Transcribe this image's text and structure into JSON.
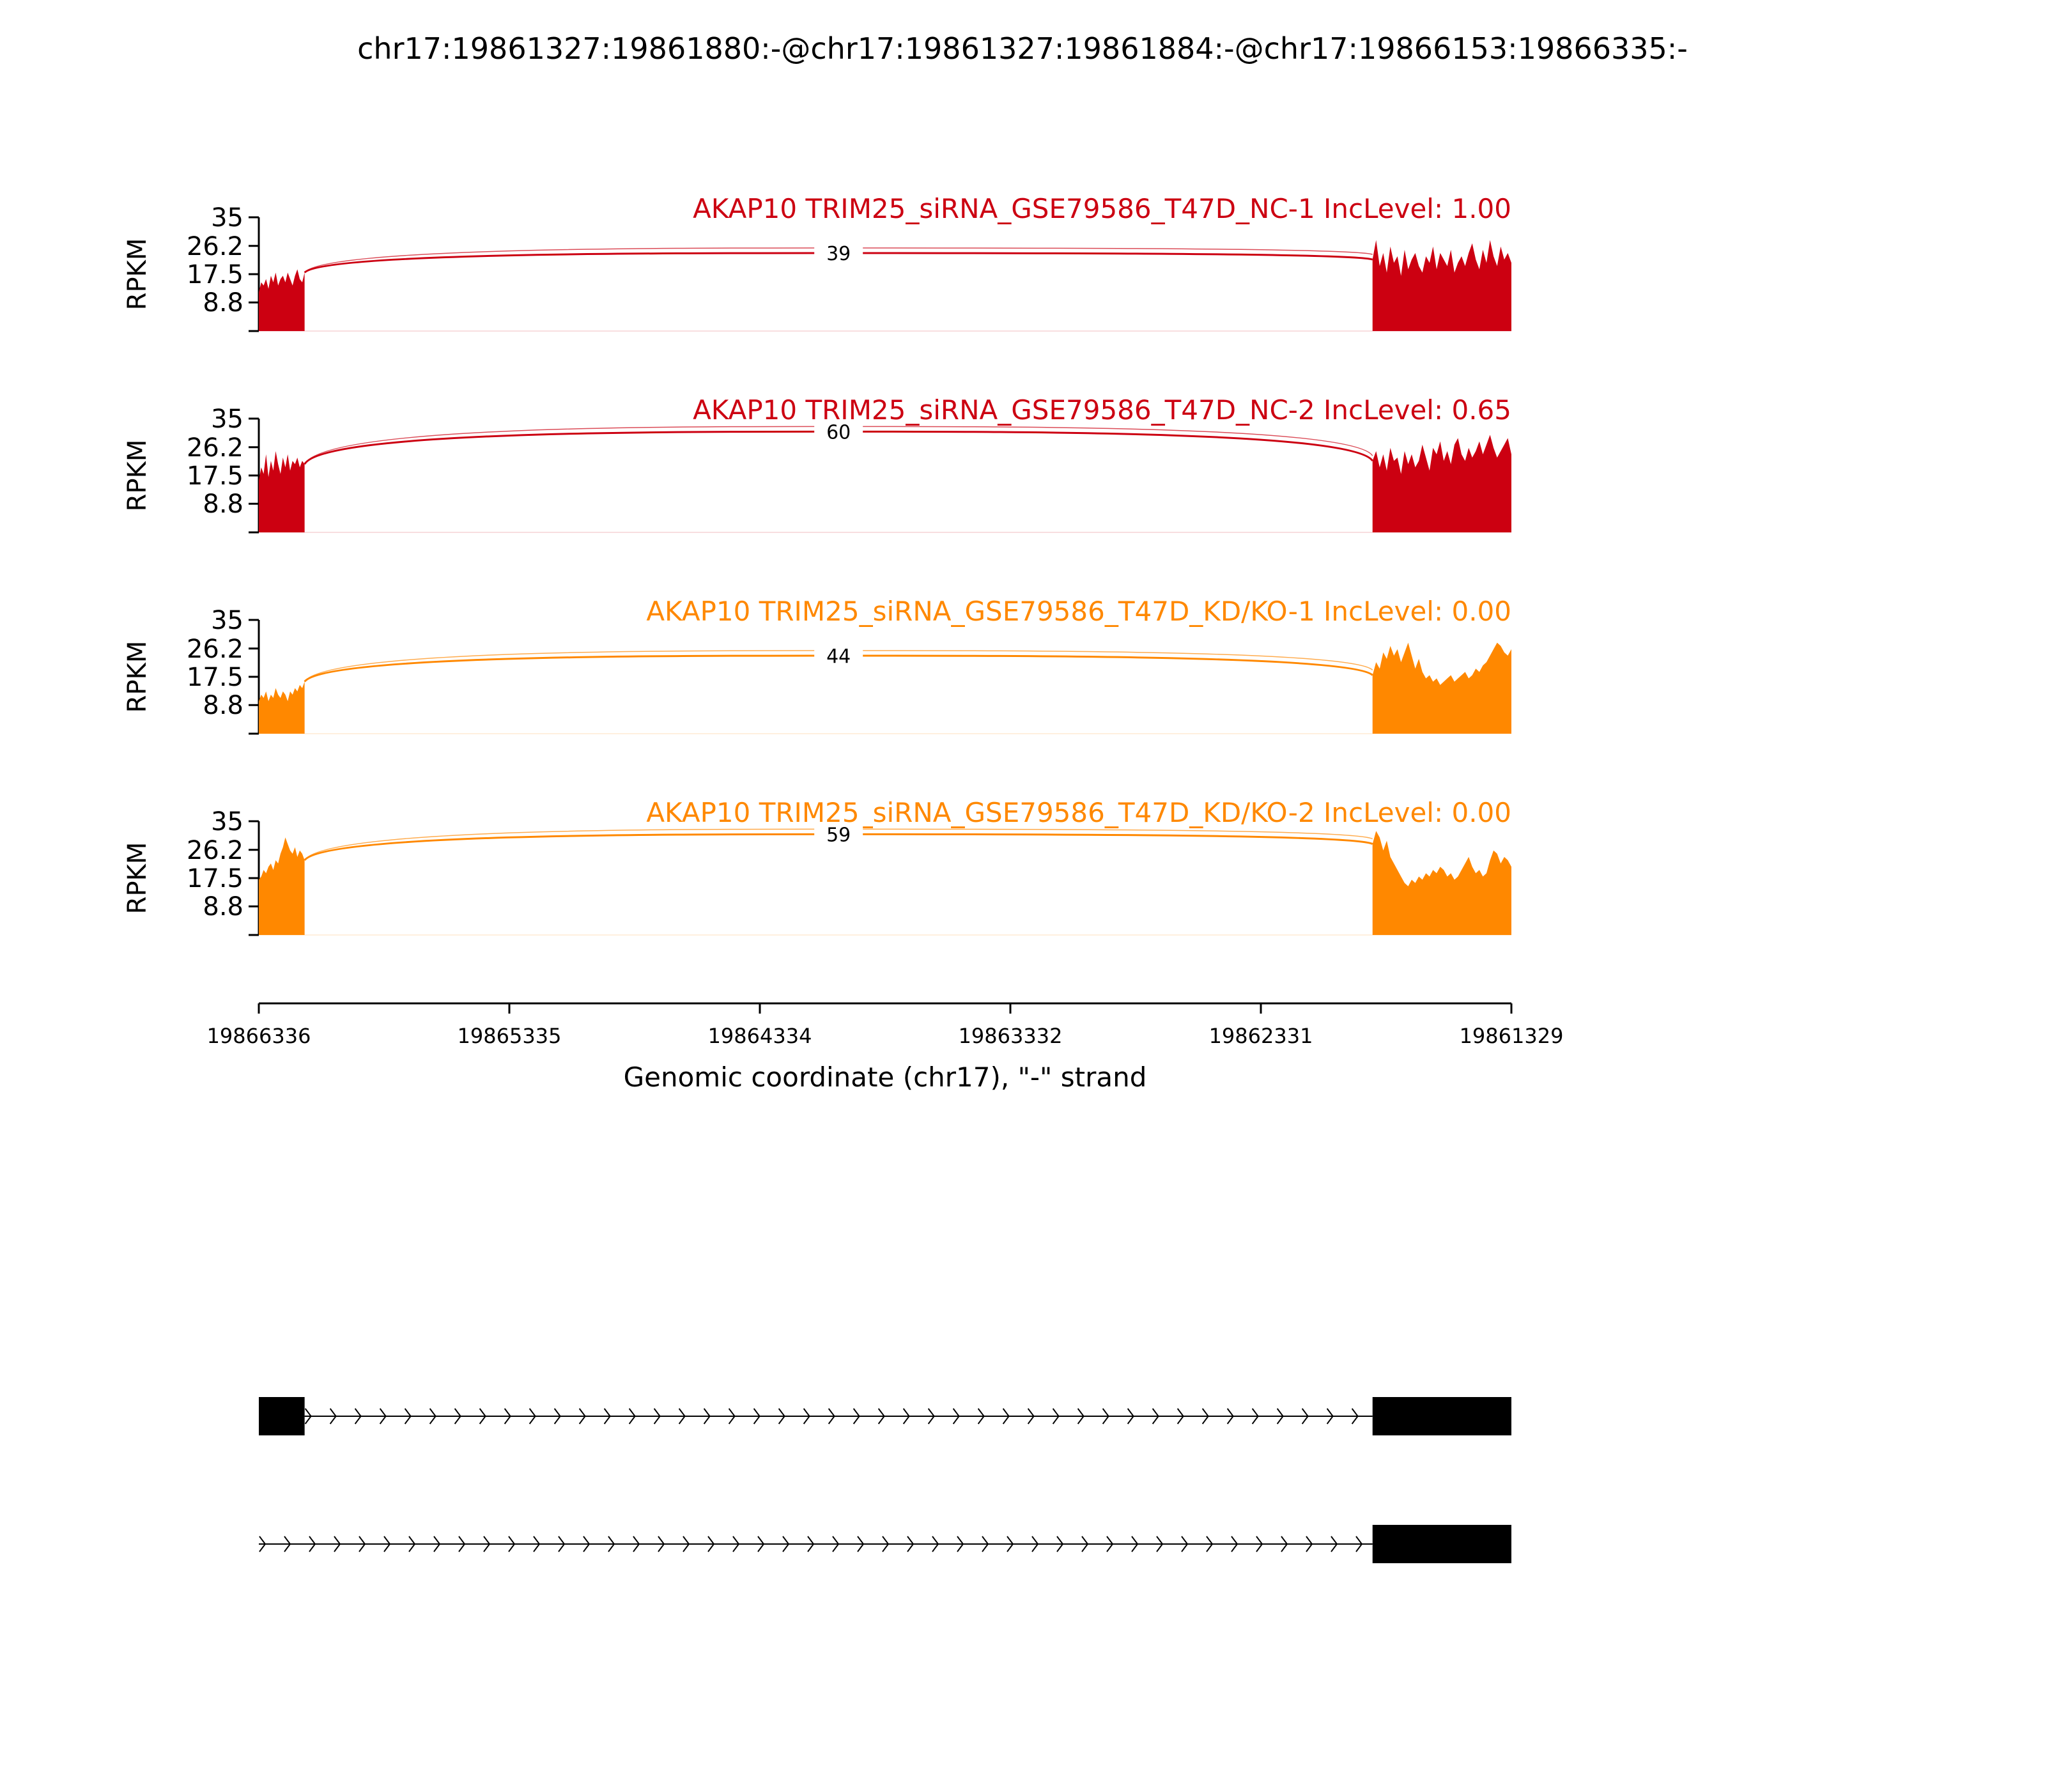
{
  "figure": {
    "title": "chr17:19861327:19861880:-@chr17:19861327:19861884:-@chr17:19866153:19866335:-"
  },
  "chart_data": {
    "type": "area",
    "ylabel": "RPKM",
    "xlabel": "Genomic coordinate (chr17), \"-\" strand",
    "x_range": [
      19866336,
      19861329
    ],
    "x_ticks": [
      "19866336",
      "19865335",
      "19864334",
      "19863332",
      "19862331",
      "19861329"
    ],
    "y_range": [
      0,
      35
    ],
    "y_ticks": [
      "35",
      "26.2",
      "17.5",
      "8.8"
    ],
    "exons": [
      {
        "start": 19866336,
        "end": 19866153
      },
      {
        "start": 19861884,
        "end": 19861329
      }
    ],
    "junction_from": 19866153,
    "junction_to": 19861884,
    "samples": [
      {
        "label": "AKAP10 TRIM25_siRNA_GSE79586_T47D_NC-1 IncLevel: 1.00",
        "color": "#cc0011",
        "junction_count": "39",
        "arc_peak_rpkm": 24,
        "left_exon_rpkm": [
          12,
          15,
          14,
          16,
          13,
          17,
          15,
          18,
          14,
          16,
          17,
          15,
          18,
          16,
          14,
          17,
          19,
          16,
          15,
          18
        ],
        "right_exon_rpkm": [
          22,
          28,
          20,
          24,
          18,
          26,
          21,
          23,
          17,
          25,
          19,
          22,
          24,
          20,
          18,
          23,
          21,
          26,
          19,
          24,
          22,
          20,
          25,
          18,
          21,
          23,
          20,
          24,
          27,
          22,
          19,
          25,
          21,
          28,
          23,
          20,
          26,
          22,
          24,
          21
        ]
      },
      {
        "label": "AKAP10 TRIM25_siRNA_GSE79586_T47D_NC-2 IncLevel: 0.65",
        "color": "#cc0011",
        "junction_count": "60",
        "arc_peak_rpkm": 31,
        "left_exon_rpkm": [
          16,
          20,
          18,
          24,
          17,
          22,
          19,
          25,
          21,
          18,
          23,
          20,
          24,
          19,
          22,
          21,
          23,
          20,
          22,
          21
        ],
        "right_exon_rpkm": [
          22,
          25,
          20,
          24,
          19,
          26,
          22,
          23,
          18,
          25,
          21,
          24,
          20,
          22,
          27,
          23,
          19,
          26,
          24,
          28,
          22,
          25,
          21,
          27,
          29,
          24,
          22,
          26,
          23,
          25,
          28,
          24,
          27,
          30,
          26,
          23,
          25,
          27,
          29,
          24
        ]
      },
      {
        "label": "AKAP10 TRIM25_siRNA_GSE79586_T47D_KD/KO-1 IncLevel: 0.00",
        "color": "#ff8800",
        "junction_count": "44",
        "arc_peak_rpkm": 24,
        "left_exon_rpkm": [
          10,
          12,
          11,
          13,
          10,
          12,
          11,
          14,
          12,
          11,
          13,
          12,
          10,
          13,
          12,
          14,
          13,
          15,
          14,
          16
        ],
        "right_exon_rpkm": [
          18,
          22,
          20,
          25,
          23,
          27,
          24,
          26,
          22,
          25,
          28,
          24,
          20,
          23,
          19,
          17,
          18,
          16,
          17,
          15,
          16,
          17,
          18,
          16,
          17,
          18,
          19,
          17,
          18,
          20,
          19,
          21,
          22,
          24,
          26,
          28,
          27,
          25,
          24,
          26
        ]
      },
      {
        "label": "AKAP10 TRIM25_siRNA_GSE79586_T47D_KD/KO-2 IncLevel: 0.00",
        "color": "#ff8800",
        "junction_count": "59",
        "arc_peak_rpkm": 31,
        "left_exon_rpkm": [
          17,
          18,
          20,
          19,
          21,
          22,
          20,
          23,
          22,
          25,
          27,
          30,
          28,
          26,
          25,
          27,
          24,
          26,
          25,
          23
        ],
        "right_exon_rpkm": [
          28,
          32,
          30,
          26,
          29,
          24,
          22,
          20,
          18,
          16,
          15,
          17,
          16,
          18,
          17,
          19,
          18,
          20,
          19,
          21,
          20,
          18,
          19,
          17,
          18,
          20,
          22,
          24,
          21,
          19,
          20,
          18,
          19,
          23,
          26,
          25,
          22,
          24,
          23,
          21
        ]
      }
    ],
    "transcripts": [
      {
        "exons": [
          [
            19866336,
            19866153
          ],
          [
            19861884,
            19861329
          ]
        ],
        "intron": [
          19866153,
          19861884
        ]
      },
      {
        "exons": [
          [
            19861884,
            19861329
          ]
        ],
        "intron": [
          19866336,
          19861884
        ]
      }
    ]
  }
}
